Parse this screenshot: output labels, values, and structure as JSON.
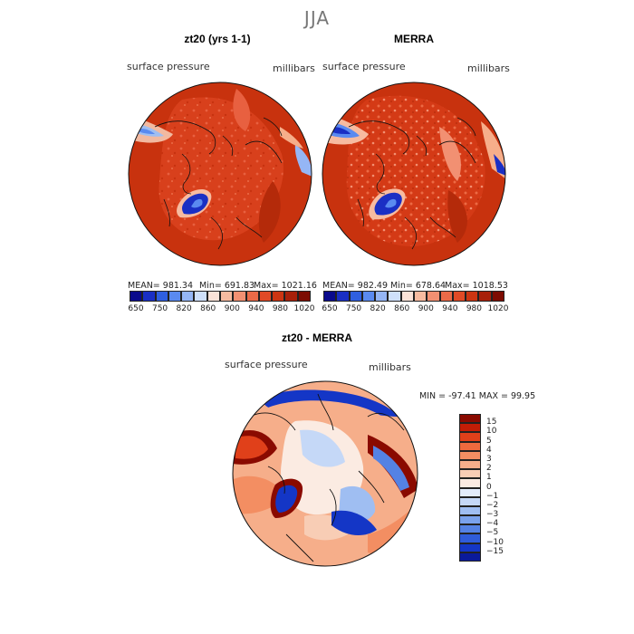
{
  "season": "JJA",
  "panels": [
    {
      "title": "zt20 (yrs 1-1)",
      "field_label": "surface pressure",
      "units_label": "millibars",
      "stats": {
        "mean": "MEAN= 981.34",
        "min": "Min= 691.83",
        "max": "Max= 1021.16"
      }
    },
    {
      "title": "MERRA",
      "field_label": "surface pressure",
      "units_label": "millibars",
      "stats": {
        "mean": "MEAN= 982.49",
        "min": "Min= 678.64",
        "max": "Max= 1018.53"
      }
    }
  ],
  "top_colorbar": {
    "tick_labels": [
      "650",
      "750",
      "820",
      "860",
      "900",
      "940",
      "980",
      "1020"
    ],
    "colors": [
      "#0a0a8c",
      "#1a2fc4",
      "#2f5fe0",
      "#5a8af0",
      "#95b6f5",
      "#cfe0fa",
      "#fbe3d8",
      "#f7bba0",
      "#f29072",
      "#ea6a48",
      "#e04a26",
      "#cc3512",
      "#a8200a",
      "#7d0c02"
    ]
  },
  "diff_panel": {
    "title": "zt20 - MERRA",
    "field_label": "surface pressure",
    "units_label": "millibars",
    "minmax": "MIN = -97.41 MAX =  99.95",
    "colorbar": {
      "labels": [
        "15",
        "10",
        "5",
        "4",
        "3",
        "2",
        "1",
        "0",
        "−1",
        "−2",
        "−3",
        "−4",
        "−5",
        "−10",
        "−15"
      ],
      "colors": [
        "#8a0a00",
        "#c21d06",
        "#e0401a",
        "#ee6a3e",
        "#f38e62",
        "#f6ae8a",
        "#f8cdb5",
        "#fbebe2",
        "#e3ecfb",
        "#c5d8f7",
        "#9fbef2",
        "#7aa2ec",
        "#5482e4",
        "#2f5cda",
        "#1436c6",
        "#0a1a9a"
      ]
    }
  }
}
